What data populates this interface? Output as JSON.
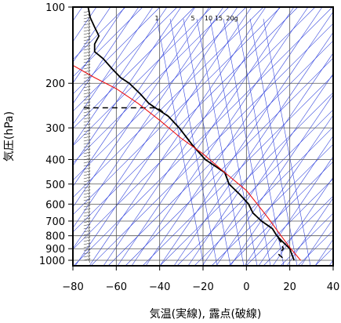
{
  "chart_data": {
    "type": "line",
    "title": "",
    "xlabel": "気温(実線), 露点(破線)",
    "ylabel": "気圧(hPa)",
    "xlim": [
      -80,
      40
    ],
    "ylim": [
      1050,
      100
    ],
    "y_scale": "log",
    "x_ticks": [
      -80,
      -60,
      -40,
      -20,
      0,
      20,
      40
    ],
    "y_ticks": [
      100,
      200,
      300,
      400,
      500,
      600,
      700,
      800,
      900,
      1000
    ],
    "grid": true,
    "mixing_ratio_labels": [
      "1",
      "5",
      "10",
      "15",
      "20g"
    ],
    "series": [
      {
        "name": "",
        "style": "solid-black",
        "points": [
          [
            -73,
            100
          ],
          [
            -72,
            110
          ],
          [
            -70,
            120
          ],
          [
            -68,
            130
          ],
          [
            -70,
            140
          ],
          [
            -70,
            150
          ],
          [
            -66,
            160
          ],
          [
            -62,
            175
          ],
          [
            -58,
            190
          ],
          [
            -54,
            200
          ],
          [
            -49,
            220
          ],
          [
            -45,
            240
          ],
          [
            -42,
            250
          ],
          [
            -36,
            270
          ],
          [
            -31,
            300
          ],
          [
            -25,
            350
          ],
          [
            -19,
            400
          ],
          [
            -10,
            450
          ],
          [
            -8,
            500
          ],
          [
            -3,
            550
          ],
          [
            1,
            600
          ],
          [
            3,
            650
          ],
          [
            7,
            700
          ],
          [
            12,
            750
          ],
          [
            14,
            800
          ],
          [
            17,
            850
          ],
          [
            20,
            900
          ],
          [
            21,
            950
          ],
          [
            22,
            1000
          ]
        ]
      },
      {
        "name": "",
        "style": "dashed-black",
        "points": [
          [
            -75,
            250
          ],
          [
            -41,
            250
          ],
          [
            -36,
            270
          ],
          [
            -31,
            300
          ],
          [
            -25,
            350
          ],
          [
            -19,
            400
          ],
          [
            -10,
            450
          ],
          [
            -8,
            500
          ],
          [
            -3,
            550
          ],
          [
            1,
            600
          ],
          [
            3,
            650
          ],
          [
            7,
            700
          ],
          [
            12,
            750
          ],
          [
            14,
            800
          ],
          [
            16,
            850
          ],
          [
            17,
            900
          ],
          [
            15,
            950
          ],
          [
            18,
            1000
          ]
        ]
      },
      {
        "name": "",
        "style": "solid-red",
        "points": [
          [
            -80,
            170
          ],
          [
            -70,
            190
          ],
          [
            -60,
            210
          ],
          [
            -50,
            240
          ],
          [
            -40,
            280
          ],
          [
            -30,
            330
          ],
          [
            -20,
            380
          ],
          [
            -10,
            450
          ],
          [
            0,
            530
          ],
          [
            5,
            600
          ],
          [
            10,
            680
          ],
          [
            15,
            780
          ],
          [
            20,
            890
          ],
          [
            25,
            1000
          ]
        ]
      }
    ]
  }
}
